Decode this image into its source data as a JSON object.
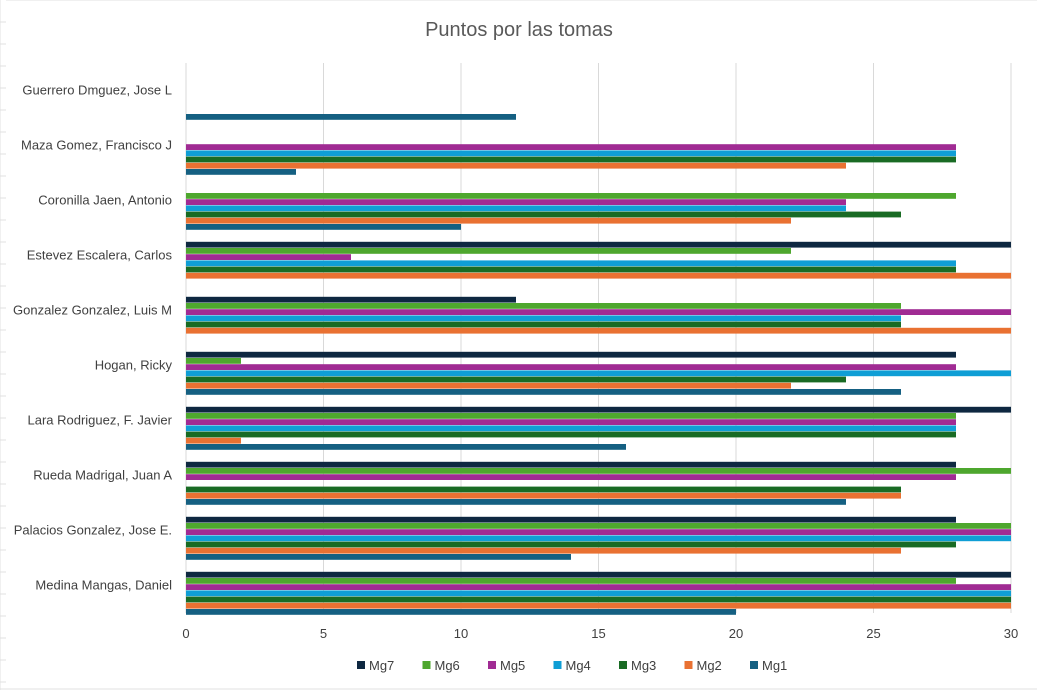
{
  "chart_data": {
    "type": "bar",
    "orientation": "horizontal",
    "title": "Puntos por las tomas",
    "xlim": [
      0,
      30
    ],
    "xticks": [
      0,
      5,
      10,
      15,
      20,
      25,
      30
    ],
    "grid": true,
    "legend_position": "bottom",
    "categories": [
      "Guerrero Dmguez, Jose L",
      "Maza Gomez, Francisco J",
      "Coronilla Jaen, Antonio",
      "Estevez Escalera, Carlos",
      "Gonzalez Gonzalez, Luis M",
      "Hogan, Ricky",
      "Lara Rodriguez, F. Javier",
      "Rueda Madrigal, Juan A",
      "Palacios Gonzalez, Jose E.",
      "Medina Mangas, Daniel"
    ],
    "series": [
      {
        "name": "Mg7",
        "color": "#0e2841",
        "values": [
          null,
          null,
          null,
          30,
          12,
          28,
          30,
          28,
          28,
          30
        ]
      },
      {
        "name": "Mg6",
        "color": "#4ea72e",
        "values": [
          null,
          null,
          28,
          22,
          26,
          2,
          28,
          30,
          30,
          28
        ]
      },
      {
        "name": "Mg5",
        "color": "#a02b93",
        "values": [
          null,
          28,
          24,
          6,
          30,
          28,
          28,
          28,
          30,
          30
        ]
      },
      {
        "name": "Mg4",
        "color": "#0f9ed5",
        "values": [
          null,
          28,
          24,
          28,
          26,
          30,
          28,
          null,
          30,
          30
        ]
      },
      {
        "name": "Mg3",
        "color": "#196b24",
        "values": [
          null,
          28,
          26,
          28,
          26,
          24,
          28,
          26,
          28,
          30
        ]
      },
      {
        "name": "Mg2",
        "color": "#e97132",
        "values": [
          null,
          24,
          22,
          30,
          30,
          22,
          2,
          26,
          26,
          30
        ]
      },
      {
        "name": "Mg1",
        "color": "#156082",
        "values": [
          12,
          4,
          10,
          null,
          null,
          26,
          16,
          24,
          14,
          20
        ]
      }
    ]
  }
}
